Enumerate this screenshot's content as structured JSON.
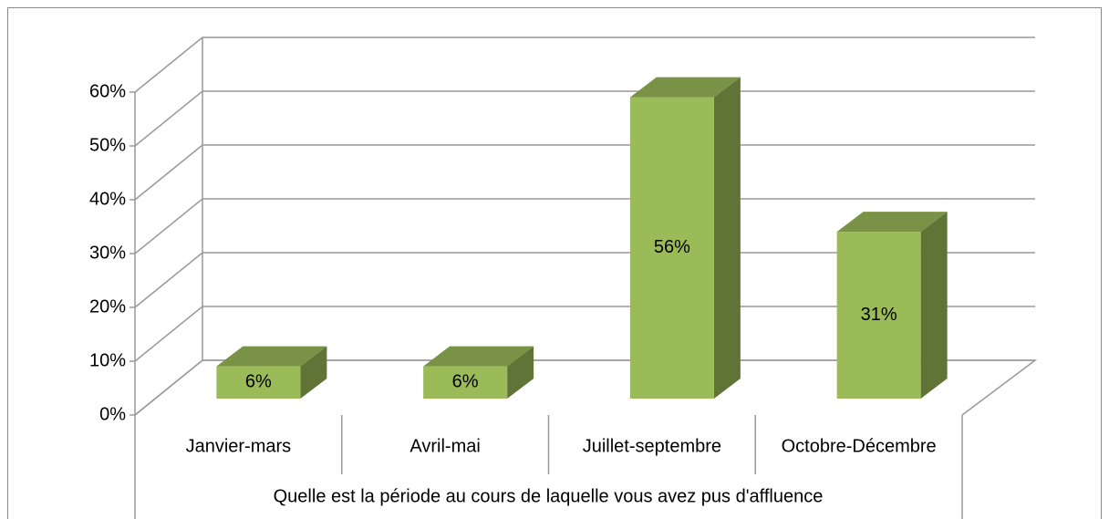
{
  "chart_data": {
    "type": "bar3d",
    "categories": [
      "Janvier-mars",
      "Avril-mai",
      "Juillet-septembre",
      "Octobre-Décembre"
    ],
    "values": [
      6,
      6,
      56,
      31
    ],
    "value_labels": [
      "6%",
      "6%",
      "56%",
      "31%"
    ],
    "color": "#9bbb59",
    "x_label": "Quelle est la période au cours de laquelle vous avez pus d'affluence",
    "ylim": [
      0,
      60
    ],
    "yticks": [
      {
        "value": 0,
        "label": "0%"
      },
      {
        "value": 10,
        "label": "10%"
      },
      {
        "value": 20,
        "label": "20%"
      },
      {
        "value": 30,
        "label": "30%"
      },
      {
        "value": 40,
        "label": "40%"
      },
      {
        "value": 50,
        "label": "50%"
      },
      {
        "value": 60,
        "label": "60%"
      }
    ],
    "grid": true
  }
}
